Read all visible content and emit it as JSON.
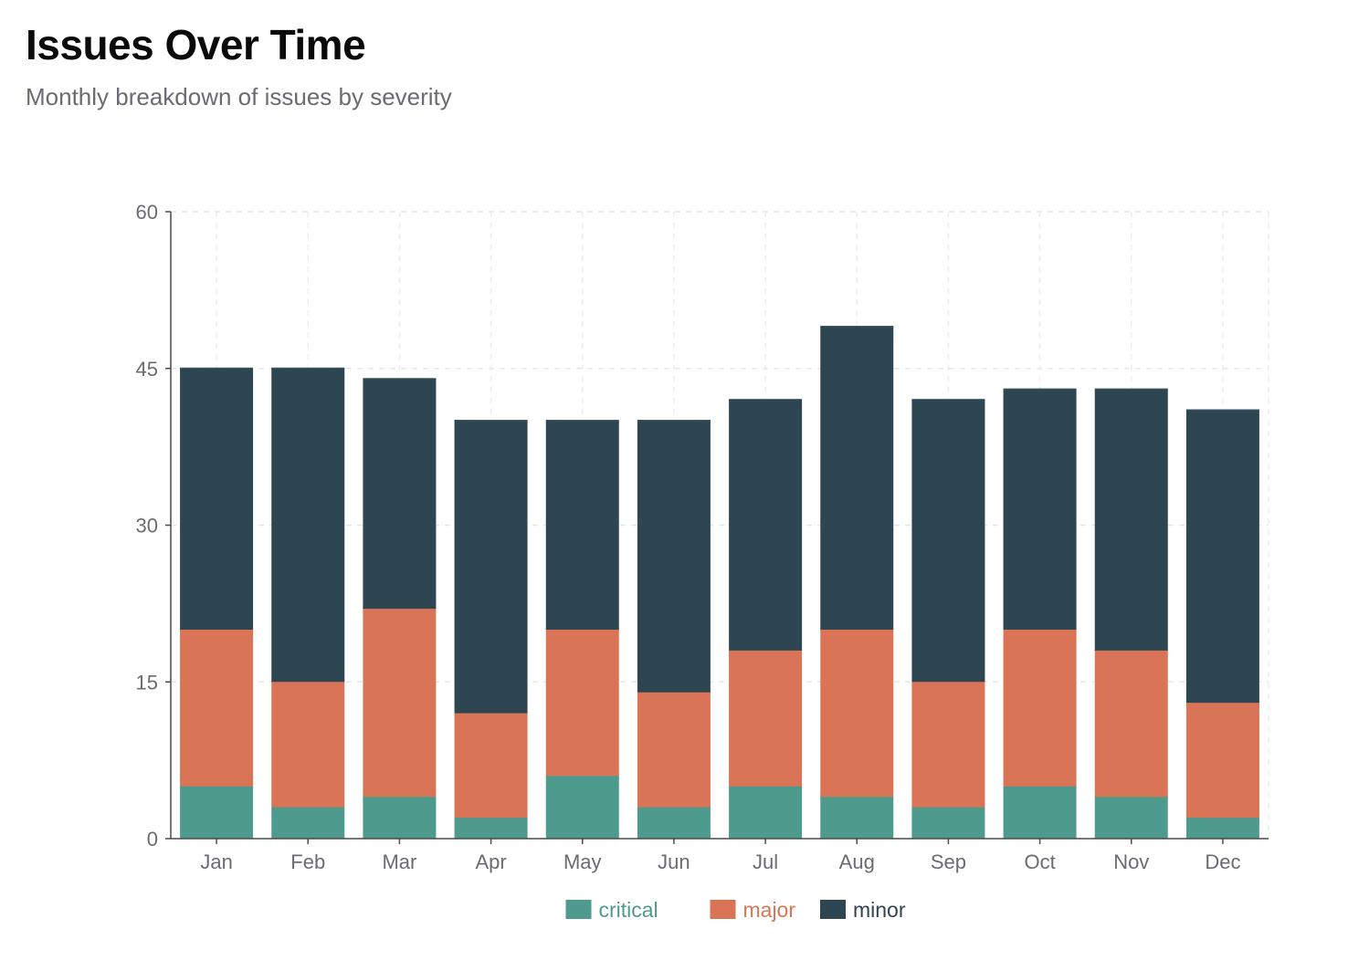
{
  "header": {
    "title": "Issues Over Time",
    "subtitle": "Monthly breakdown of issues by severity"
  },
  "chart_data": {
    "type": "bar",
    "stacked": true,
    "title": "Issues Over Time",
    "subtitle": "Monthly breakdown of issues by severity",
    "xlabel": "",
    "ylabel": "",
    "ylim": [
      0,
      60
    ],
    "yticks": [
      0,
      15,
      30,
      45,
      60
    ],
    "grid": true,
    "legend_position": "bottom-center",
    "categories": [
      "Jan",
      "Feb",
      "Mar",
      "Apr",
      "May",
      "Jun",
      "Jul",
      "Aug",
      "Sep",
      "Oct",
      "Nov",
      "Dec"
    ],
    "series": [
      {
        "name": "critical",
        "color": "#4e9a8d",
        "values": [
          5,
          3,
          4,
          2,
          6,
          3,
          5,
          4,
          3,
          5,
          4,
          2
        ]
      },
      {
        "name": "major",
        "color": "#d97556",
        "values": [
          15,
          12,
          18,
          10,
          14,
          11,
          13,
          16,
          12,
          15,
          14,
          11
        ]
      },
      {
        "name": "minor",
        "color": "#2e4652",
        "values": [
          25,
          30,
          22,
          28,
          20,
          26,
          24,
          29,
          27,
          23,
          25,
          28
        ]
      }
    ]
  }
}
